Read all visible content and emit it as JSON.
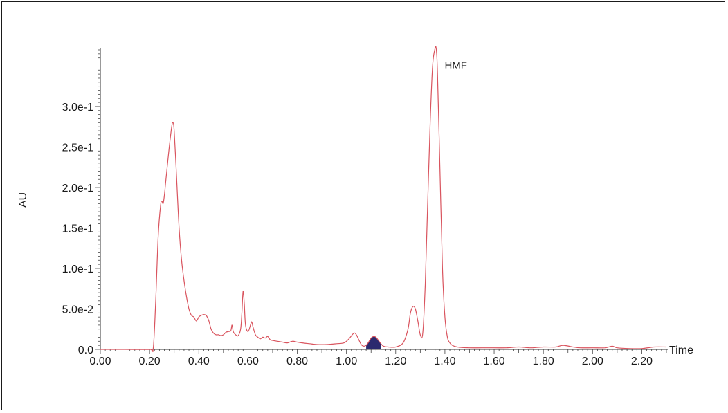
{
  "chart_data": {
    "type": "line",
    "title": "",
    "xlabel": "Time",
    "ylabel": "AU",
    "xlim": [
      0.0,
      2.3
    ],
    "ylim": [
      0.0,
      0.37
    ],
    "x_ticks": [
      0.0,
      0.2,
      0.4,
      0.6,
      0.8,
      1.0,
      1.2,
      1.4,
      1.6,
      1.8,
      2.0,
      2.2
    ],
    "x_tick_labels": [
      "0.00",
      "0.20",
      "0.40",
      "0.60",
      "0.80",
      "1.00",
      "1.20",
      "1.40",
      "1.60",
      "1.80",
      "2.00",
      "2.20"
    ],
    "y_ticks": [
      0.0,
      0.05,
      0.1,
      0.15,
      0.2,
      0.25,
      0.3
    ],
    "y_tick_labels": [
      "0.0",
      "5.0e-2",
      "1.0e-1",
      "1.5e-1",
      "2.0e-1",
      "2.5e-1",
      "3.0e-1"
    ],
    "grid": false,
    "line_color": "#d9545e",
    "shaded_peak_color": "#2b2a6e",
    "shaded_peak_range": [
      1.08,
      1.14
    ],
    "annotations": [
      {
        "text": "HMF",
        "x": 1.365,
        "y": 0.36
      }
    ],
    "series": [
      {
        "x": [
          0.0,
          0.1,
          0.2,
          0.215,
          0.225,
          0.235,
          0.245,
          0.25,
          0.255,
          0.26,
          0.265,
          0.27,
          0.28,
          0.29,
          0.295,
          0.3,
          0.31,
          0.32,
          0.33,
          0.34,
          0.35,
          0.36,
          0.37,
          0.38,
          0.39,
          0.4,
          0.41,
          0.42,
          0.43,
          0.44,
          0.45,
          0.46,
          0.47,
          0.48,
          0.49,
          0.5,
          0.51,
          0.52,
          0.53,
          0.535,
          0.54,
          0.55,
          0.56,
          0.57,
          0.575,
          0.58,
          0.585,
          0.59,
          0.6,
          0.61,
          0.615,
          0.62,
          0.63,
          0.64,
          0.65,
          0.66,
          0.67,
          0.68,
          0.69,
          0.7,
          0.72,
          0.74,
          0.76,
          0.78,
          0.8,
          0.82,
          0.85,
          0.88,
          0.92,
          0.96,
          0.99,
          1.01,
          1.03,
          1.04,
          1.05,
          1.06,
          1.07,
          1.08,
          1.09,
          1.1,
          1.11,
          1.12,
          1.13,
          1.14,
          1.15,
          1.17,
          1.2,
          1.23,
          1.25,
          1.26,
          1.27,
          1.28,
          1.29,
          1.3,
          1.31,
          1.32,
          1.33,
          1.34,
          1.35,
          1.36,
          1.365,
          1.37,
          1.38,
          1.39,
          1.4,
          1.41,
          1.42,
          1.43,
          1.45,
          1.5,
          1.55,
          1.6,
          1.65,
          1.7,
          1.75,
          1.8,
          1.85,
          1.88,
          1.92,
          1.95,
          2.0,
          2.05,
          2.08,
          2.1,
          2.15,
          2.2,
          2.25,
          2.3
        ],
        "values": [
          0.0,
          0.0,
          0.0,
          0.002,
          0.06,
          0.14,
          0.178,
          0.183,
          0.18,
          0.19,
          0.205,
          0.22,
          0.25,
          0.275,
          0.28,
          0.27,
          0.21,
          0.15,
          0.11,
          0.085,
          0.065,
          0.05,
          0.042,
          0.04,
          0.035,
          0.04,
          0.042,
          0.043,
          0.042,
          0.036,
          0.025,
          0.02,
          0.018,
          0.018,
          0.017,
          0.018,
          0.021,
          0.022,
          0.023,
          0.03,
          0.022,
          0.018,
          0.017,
          0.025,
          0.045,
          0.072,
          0.055,
          0.03,
          0.022,
          0.03,
          0.034,
          0.028,
          0.018,
          0.015,
          0.013,
          0.015,
          0.014,
          0.016,
          0.012,
          0.011,
          0.01,
          0.009,
          0.008,
          0.01,
          0.009,
          0.008,
          0.007,
          0.006,
          0.006,
          0.007,
          0.008,
          0.013,
          0.02,
          0.018,
          0.012,
          0.006,
          0.004,
          0.005,
          0.009,
          0.014,
          0.016,
          0.015,
          0.011,
          0.007,
          0.004,
          0.003,
          0.003,
          0.008,
          0.025,
          0.045,
          0.053,
          0.05,
          0.035,
          0.018,
          0.02,
          0.08,
          0.18,
          0.28,
          0.35,
          0.372,
          0.37,
          0.34,
          0.22,
          0.1,
          0.04,
          0.015,
          0.008,
          0.005,
          0.003,
          0.002,
          0.002,
          0.002,
          0.002,
          0.003,
          0.002,
          0.003,
          0.003,
          0.005,
          0.003,
          0.002,
          0.002,
          0.002,
          0.004,
          0.002,
          0.001,
          0.001,
          0.003,
          0.003
        ]
      }
    ]
  }
}
